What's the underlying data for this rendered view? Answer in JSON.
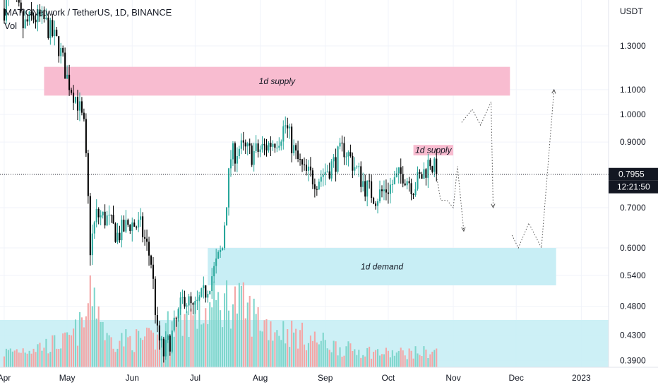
{
  "header": {
    "title": "MATICNetwork / TetherUS, 1D, BINANCE",
    "volume_label": "Vol"
  },
  "colors": {
    "up": "#26a69a",
    "down": "#000000",
    "volume_up": "#7fd6cc",
    "volume_down": "#f4a6a6",
    "supply_zone": "#f8bcd0",
    "demand_zone": "#c8eef5",
    "price_tag_bg": "#131722",
    "price_tag_text": "#ffffff"
  },
  "chart_data": {
    "type": "candlestick",
    "log_scale": true,
    "quote_unit": "USDT",
    "x_tick_labels": [
      "Apr",
      "May",
      "Jun",
      "Jul",
      "Aug",
      "Sep",
      "Oct",
      "Nov",
      "Dec",
      "2023"
    ],
    "y_tick_labels": [
      "1.3000",
      "1.1000",
      "1.0000",
      "0.9000",
      "0.7000",
      "0.6000",
      "0.5400",
      "0.4800",
      "0.4300",
      "0.3900"
    ],
    "y_ticks": [
      1.3,
      1.1,
      1.0,
      0.9,
      0.7,
      0.6,
      0.54,
      0.48,
      0.43,
      0.39
    ],
    "y_range": [
      0.38,
      1.55
    ],
    "x_range": [
      "2022-03-30",
      "2023-01-14"
    ],
    "last_price": 0.7955,
    "last_price_label": "0.7955",
    "countdown_label": "12:21:50",
    "price_anchors": [
      [
        "2022-04-01",
        1.5
      ],
      [
        "2022-04-05",
        1.6
      ],
      [
        "2022-04-10",
        1.4
      ],
      [
        "2022-04-15",
        1.45
      ],
      [
        "2022-04-20",
        1.43
      ],
      [
        "2022-04-27",
        1.3
      ],
      [
        "2022-05-01",
        1.15
      ],
      [
        "2022-05-06",
        1.05
      ],
      [
        "2022-05-09",
        0.95
      ],
      [
        "2022-05-12",
        0.6
      ],
      [
        "2022-05-15",
        0.68
      ],
      [
        "2022-05-20",
        0.67
      ],
      [
        "2022-05-25",
        0.63
      ],
      [
        "2022-05-31",
        0.66
      ],
      [
        "2022-06-05",
        0.65
      ],
      [
        "2022-06-10",
        0.57
      ],
      [
        "2022-06-13",
        0.43
      ],
      [
        "2022-06-16",
        0.4
      ],
      [
        "2022-06-20",
        0.43
      ],
      [
        "2022-06-26",
        0.5
      ],
      [
        "2022-06-30",
        0.47
      ],
      [
        "2022-07-05",
        0.5
      ],
      [
        "2022-07-10",
        0.55
      ],
      [
        "2022-07-14",
        0.6
      ],
      [
        "2022-07-18",
        0.85
      ],
      [
        "2022-07-22",
        0.88
      ],
      [
        "2022-07-28",
        0.86
      ],
      [
        "2022-08-03",
        0.88
      ],
      [
        "2022-08-10",
        0.92
      ],
      [
        "2022-08-13",
        0.96
      ],
      [
        "2022-08-18",
        0.85
      ],
      [
        "2022-08-22",
        0.8
      ],
      [
        "2022-08-28",
        0.78
      ],
      [
        "2022-09-05",
        0.83
      ],
      [
        "2022-09-10",
        0.88
      ],
      [
        "2022-09-15",
        0.82
      ],
      [
        "2022-09-20",
        0.76
      ],
      [
        "2022-09-25",
        0.73
      ],
      [
        "2022-10-02",
        0.76
      ],
      [
        "2022-10-08",
        0.8
      ],
      [
        "2022-10-13",
        0.76
      ],
      [
        "2022-10-17",
        0.79
      ],
      [
        "2022-10-21",
        0.84
      ],
      [
        "2022-10-24",
        0.7955
      ]
    ],
    "volume_anchors": [
      [
        "2022-04-01",
        0.16
      ],
      [
        "2022-05-01",
        0.28
      ],
      [
        "2022-05-10",
        0.5
      ],
      [
        "2022-05-12",
        1.0
      ],
      [
        "2022-05-20",
        0.3
      ],
      [
        "2022-06-13",
        0.3
      ],
      [
        "2022-06-20",
        0.5
      ],
      [
        "2022-07-05",
        0.6
      ],
      [
        "2022-07-18",
        0.75
      ],
      [
        "2022-08-05",
        0.45
      ],
      [
        "2022-09-10",
        0.2
      ],
      [
        "2022-10-01",
        0.15
      ],
      [
        "2022-10-24",
        0.17
      ]
    ],
    "zones": [
      {
        "label": "1d supply",
        "start": "2022-04-20",
        "end": "2022-11-28",
        "low": 1.075,
        "high": 1.2
      },
      {
        "label": "1d supply",
        "start": "2022-10-13",
        "end": "2022-11-01",
        "low": 0.855,
        "high": 0.89
      },
      {
        "label": "1d demand",
        "start": "2022-07-07",
        "end": "2022-12-20",
        "low": 0.52,
        "high": 0.6
      }
    ],
    "projection_paths": [
      [
        [
          "2022-10-24",
          0.79
        ],
        [
          "2022-10-26",
          0.72
        ],
        [
          "2022-10-29",
          0.72
        ],
        [
          "2022-11-01",
          0.7
        ],
        [
          "2022-11-03",
          0.82
        ],
        [
          "2022-11-06",
          0.64
        ]
      ],
      [
        [
          "2022-11-05",
          0.97
        ],
        [
          "2022-11-10",
          1.02
        ],
        [
          "2022-11-14",
          0.96
        ],
        [
          "2022-11-19",
          1.05
        ],
        [
          "2022-11-20",
          0.7
        ]
      ],
      [
        [
          "2022-11-29",
          0.63
        ],
        [
          "2022-12-02",
          0.6
        ],
        [
          "2022-12-07",
          0.66
        ],
        [
          "2022-12-13",
          0.6
        ],
        [
          "2022-12-19",
          1.1
        ]
      ]
    ]
  }
}
